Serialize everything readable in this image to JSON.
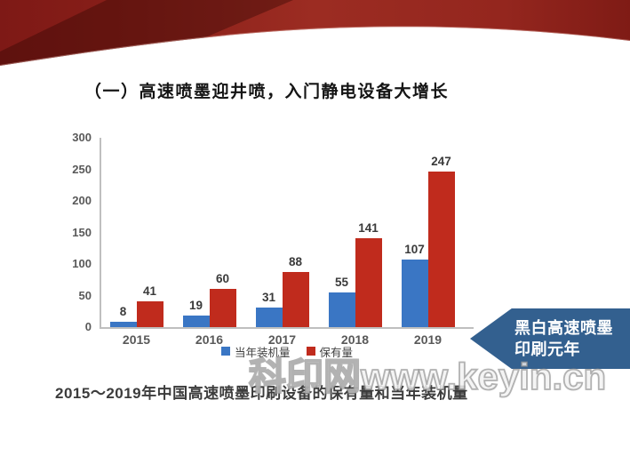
{
  "slide": {
    "title": "（一）高速喷墨迎井喷，入门静电设备大增长",
    "caption": "2015～2019年中国高速喷墨印刷设备的保有量和当年装机量",
    "watermark": "科印网www.keyin.cn",
    "banner_color": "#8E1B16",
    "annotation": {
      "line1": "黑白高速喷墨",
      "line2": "印刷元年",
      "bg_color": "#33608F"
    }
  },
  "chart_data": {
    "type": "bar",
    "categories": [
      "2015",
      "2016",
      "2017",
      "2018",
      "2019"
    ],
    "series": [
      {
        "name": "当年装机量",
        "color": "#3A76C4",
        "values": [
          8,
          19,
          31,
          55,
          107
        ]
      },
      {
        "name": "保有量",
        "color": "#C02B1D",
        "values": [
          41,
          60,
          88,
          141,
          247
        ]
      }
    ],
    "title": "",
    "xlabel": "",
    "ylabel": "",
    "ylim": [
      0,
      300
    ],
    "yticks": [
      0,
      50,
      100,
      150,
      200,
      250,
      300
    ],
    "legend_position": "bottom",
    "grid": false
  }
}
